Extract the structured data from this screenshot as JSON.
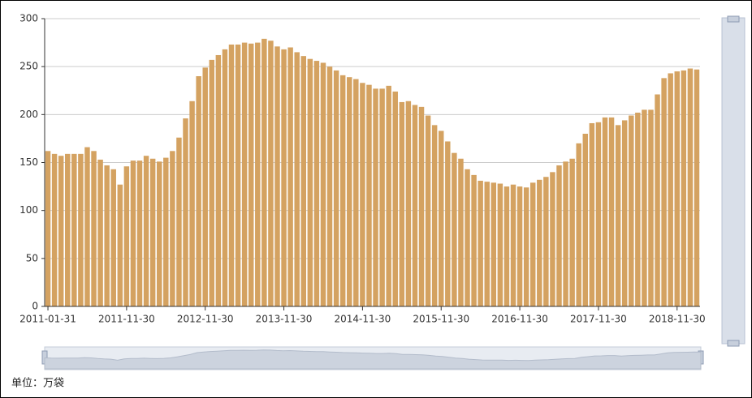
{
  "chart_data": {
    "type": "bar",
    "categories": [
      "2011-01-31",
      null,
      null,
      null,
      null,
      null,
      null,
      null,
      null,
      null,
      null,
      null,
      "2011-11-30",
      null,
      null,
      null,
      null,
      null,
      null,
      null,
      null,
      null,
      null,
      null,
      "2012-11-30",
      null,
      null,
      null,
      null,
      null,
      null,
      null,
      null,
      null,
      null,
      null,
      "2013-11-30",
      null,
      null,
      null,
      null,
      null,
      null,
      null,
      null,
      null,
      null,
      null,
      "2014-11-30",
      null,
      null,
      null,
      null,
      null,
      null,
      null,
      null,
      null,
      null,
      null,
      "2015-11-30",
      null,
      null,
      null,
      null,
      null,
      null,
      null,
      null,
      null,
      null,
      null,
      "2016-11-30",
      null,
      null,
      null,
      null,
      null,
      null,
      null,
      null,
      null,
      null,
      null,
      "2017-11-30",
      null,
      null,
      null,
      null,
      null,
      null,
      null,
      null,
      null,
      null,
      null,
      "2018-11-30",
      null,
      null,
      null
    ],
    "values": [
      162,
      159,
      157,
      159,
      159,
      159,
      166,
      162,
      153,
      147,
      143,
      127,
      146,
      152,
      152,
      157,
      154,
      151,
      155,
      162,
      176,
      196,
      214,
      240,
      249,
      257,
      262,
      268,
      273,
      273,
      275,
      274,
      275,
      279,
      277,
      271,
      268,
      270,
      265,
      261,
      258,
      256,
      254,
      250,
      246,
      241,
      239,
      237,
      233,
      231,
      227,
      227,
      230,
      224,
      213,
      214,
      210,
      208,
      199,
      189,
      183,
      172,
      160,
      154,
      143,
      137,
      131,
      130,
      129,
      128,
      125,
      127,
      125,
      124,
      129,
      132,
      135,
      140,
      147,
      151,
      154,
      170,
      180,
      191,
      192,
      197,
      197,
      189,
      194,
      199,
      202,
      205,
      205,
      221,
      238,
      243,
      245,
      246,
      248,
      247
    ],
    "color": "#d4a261",
    "ylim": [
      0,
      300
    ],
    "yticks": [
      0,
      50,
      100,
      150,
      200,
      250,
      300
    ],
    "grid": true,
    "footnote": "单位：万袋"
  }
}
